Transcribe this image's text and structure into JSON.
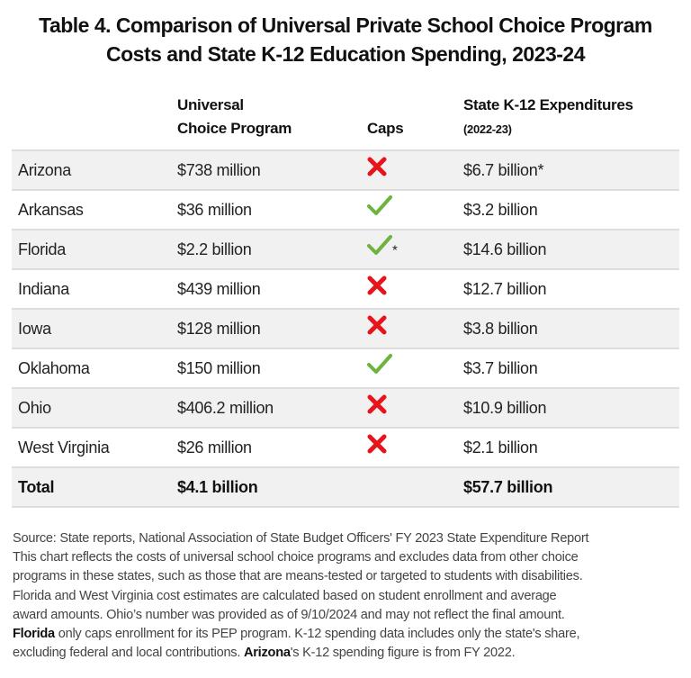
{
  "title": {
    "line1": "Table 4. Comparison of Universal Private School Choice Program",
    "line2": "Costs and State K-12 Education Spending, 2023-24"
  },
  "headers": {
    "program_line1": "Universal",
    "program_line2": "Choice Program",
    "caps": "Caps",
    "expenditures_line1": "State K-12 Expenditures",
    "expenditures_line2": "(2022-23)"
  },
  "colors": {
    "check": "#6cb33f",
    "cross": "#e8141c",
    "row_alt": "#f1f1f1"
  },
  "rows": [
    {
      "state": "Arizona",
      "program": "$738 million",
      "caps": "cross-icon",
      "caps_note": "",
      "expenditures": "$6.7 billion*"
    },
    {
      "state": "Arkansas",
      "program": "$36 million",
      "caps": "check-icon",
      "caps_note": "",
      "expenditures": "$3.2 billion"
    },
    {
      "state": "Florida",
      "program": "$2.2 billion",
      "caps": "check-icon",
      "caps_note": "*",
      "expenditures": "$14.6 billion"
    },
    {
      "state": "Indiana",
      "program": "$439 million",
      "caps": "cross-icon",
      "caps_note": "",
      "expenditures": "$12.7 billion"
    },
    {
      "state": "Iowa",
      "program": "$128 million",
      "caps": "cross-icon",
      "caps_note": "",
      "expenditures": "$3.8 billion"
    },
    {
      "state": "Oklahoma",
      "program": "$150 million",
      "caps": "check-icon",
      "caps_note": "",
      "expenditures": "$3.7 billion"
    },
    {
      "state": "Ohio",
      "program": "$406.2 million",
      "caps": "cross-icon",
      "caps_note": "",
      "expenditures": "$10.9 billion"
    },
    {
      "state": "West Virginia",
      "program": "$26 million",
      "caps": "cross-icon",
      "caps_note": "",
      "expenditures": "$2.1 billion"
    }
  ],
  "total": {
    "label": "Total",
    "program": "$4.1 billion",
    "expenditures": "$57.7 billion"
  },
  "footnote": {
    "l1": "Source: State reports, National Association of State Budget Officers' FY 2023 State Expenditure Report",
    "l2": "This chart reflects the costs of universal school choice programs and excludes data from other choice",
    "l3": "programs in these states, such as those that are means-tested or targeted to students with disabilities.",
    "l4": "Florida and West Virginia cost estimates are calculated based on student enrollment and average",
    "l5": "award amounts. Ohio’s number was provided as of 9/10/2024 and may not reflect the final amount.",
    "l6_bold": "Florida",
    "l6_rest": " only caps enrollment for its PEP program. K-12 spending data includes only the state's share,",
    "l7_a": "excluding federal and local contributions. ",
    "l7_bold": "Arizona",
    "l7_rest": "'s K-12 spending figure is from FY 2022."
  }
}
